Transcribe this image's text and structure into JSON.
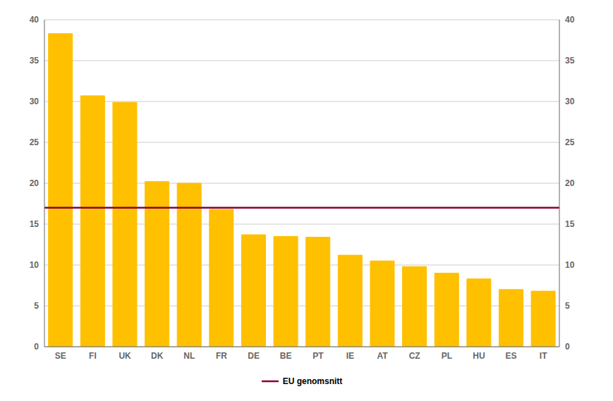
{
  "chart_data": {
    "type": "bar",
    "categories": [
      "SE",
      "FI",
      "UK",
      "DK",
      "NL",
      "FR",
      "DE",
      "BE",
      "PT",
      "IE",
      "AT",
      "CZ",
      "PL",
      "HU",
      "ES",
      "IT"
    ],
    "values": [
      38.3,
      30.7,
      29.9,
      20.2,
      20.0,
      16.8,
      13.7,
      13.5,
      13.4,
      11.2,
      10.5,
      9.8,
      9.0,
      8.3,
      7.0,
      6.8
    ],
    "color": "#FFC000",
    "reference_lines": [
      {
        "name": "EU genomsnitt",
        "value": 17.0,
        "color": "#8B0037"
      }
    ],
    "ylim": [
      0,
      40
    ],
    "yticks": [
      0,
      5,
      10,
      15,
      20,
      25,
      30,
      35,
      40
    ],
    "y2lim": [
      0,
      40
    ],
    "y2ticks": [
      0,
      5,
      10,
      15,
      20,
      25,
      30,
      35,
      40
    ],
    "grid": true,
    "legend": "bottom"
  }
}
